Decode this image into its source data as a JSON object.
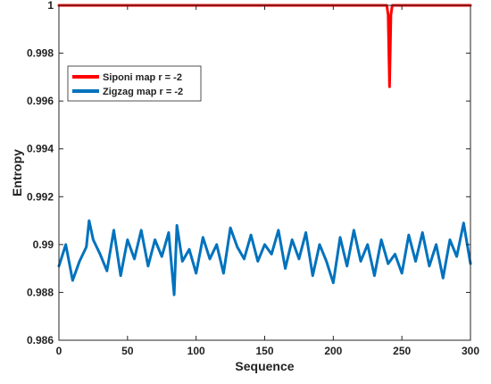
{
  "chart_data": {
    "type": "line",
    "title": "",
    "xlabel": "Sequence",
    "ylabel": "Entropy",
    "xlim": [
      0,
      300
    ],
    "ylim": [
      0.986,
      1.0
    ],
    "xticks": [
      0,
      50,
      100,
      150,
      200,
      250,
      300
    ],
    "xtick_labels": [
      "0",
      "50",
      "100",
      "150",
      "200",
      "250",
      "300"
    ],
    "yticks": [
      0.986,
      0.988,
      0.99,
      0.992,
      0.994,
      0.996,
      0.998,
      1.0
    ],
    "ytick_labels": [
      "0.986",
      "0.988",
      "0.99",
      "0.992",
      "0.994",
      "0.996",
      "0.998",
      "1"
    ],
    "grid": false,
    "legend_position": "top-left",
    "series": [
      {
        "name": "Siponi map r = -2",
        "color": "#ff0000",
        "x": [
          0,
          239,
          240,
          241,
          242,
          243,
          300
        ],
        "y": [
          1.0,
          1.0,
          0.9996,
          0.9966,
          0.9996,
          1.0,
          1.0
        ]
      },
      {
        "name": "Zigzag map r = -2",
        "color": "#0072bd",
        "x": [
          0,
          5,
          10,
          15,
          20,
          22,
          25,
          30,
          35,
          40,
          45,
          50,
          55,
          60,
          65,
          70,
          75,
          80,
          84,
          86,
          90,
          95,
          100,
          105,
          110,
          115,
          120,
          125,
          130,
          135,
          140,
          145,
          150,
          155,
          160,
          165,
          170,
          175,
          180,
          185,
          190,
          195,
          200,
          205,
          210,
          215,
          220,
          225,
          230,
          235,
          240,
          245,
          250,
          255,
          260,
          265,
          270,
          275,
          280,
          285,
          290,
          295,
          300
        ],
        "y": [
          0.9891,
          0.99,
          0.9885,
          0.9893,
          0.9899,
          0.991,
          0.9902,
          0.9896,
          0.9889,
          0.9906,
          0.9887,
          0.9902,
          0.9894,
          0.9906,
          0.9891,
          0.9902,
          0.9895,
          0.9905,
          0.9879,
          0.9908,
          0.9893,
          0.9898,
          0.9888,
          0.9903,
          0.9894,
          0.99,
          0.9888,
          0.9907,
          0.9899,
          0.9894,
          0.9904,
          0.9893,
          0.99,
          0.9896,
          0.9906,
          0.989,
          0.9902,
          0.9894,
          0.9905,
          0.9887,
          0.99,
          0.9893,
          0.9884,
          0.9903,
          0.9891,
          0.9906,
          0.9893,
          0.99,
          0.9887,
          0.9902,
          0.9892,
          0.9896,
          0.9888,
          0.9904,
          0.9893,
          0.9905,
          0.9891,
          0.99,
          0.9886,
          0.9902,
          0.9895,
          0.9909,
          0.9892
        ]
      }
    ]
  }
}
